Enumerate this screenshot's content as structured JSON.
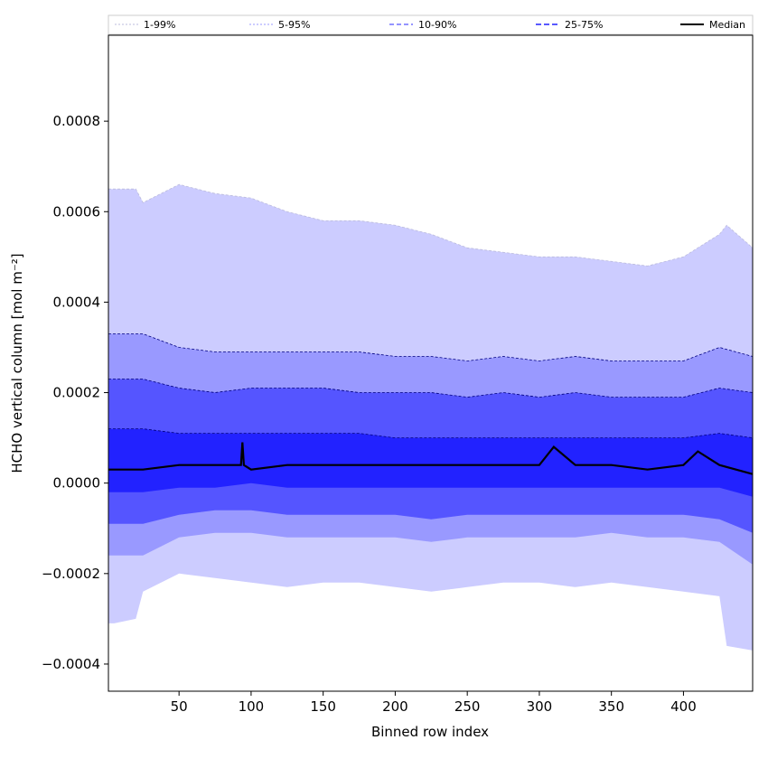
{
  "chart_data": {
    "type": "area",
    "xlabel": "Binned row index",
    "ylabel": "HCHO vertical column [mol m⁻²]",
    "xlim": [
      1,
      448
    ],
    "ylim": [
      -0.00046,
      0.00099
    ],
    "x_ticks": [
      50,
      100,
      150,
      200,
      250,
      300,
      350,
      400
    ],
    "y_ticks": [
      -0.0004,
      -0.0002,
      0.0,
      0.0002,
      0.0004,
      0.0006,
      0.0008
    ],
    "y_tick_labels": [
      "−0.0004",
      "−0.0002",
      "0.0000",
      "0.0002",
      "0.0004",
      "0.0006",
      "0.0008"
    ],
    "legend_placement": "top",
    "legend": [
      "1-99%",
      "5-95%",
      "10-90%",
      "25-75%",
      "Median"
    ],
    "bands": [
      {
        "name": "1-99%",
        "color": "#ccccff",
        "line_color": "#bbbbdd",
        "x": [
          1,
          5,
          20,
          25,
          50,
          75,
          100,
          125,
          150,
          175,
          200,
          225,
          250,
          275,
          300,
          325,
          350,
          375,
          400,
          425,
          430,
          448
        ],
        "lower": [
          -0.00031,
          -0.00031,
          -0.0003,
          -0.00024,
          -0.0002,
          -0.00021,
          -0.00022,
          -0.00023,
          -0.00022,
          -0.00022,
          -0.00023,
          -0.00024,
          -0.00023,
          -0.00022,
          -0.00022,
          -0.00023,
          -0.00022,
          -0.00023,
          -0.00024,
          -0.00025,
          -0.00036,
          -0.00037
        ],
        "upper": [
          0.00065,
          0.00065,
          0.00065,
          0.00062,
          0.00066,
          0.00064,
          0.00063,
          0.0006,
          0.00058,
          0.00058,
          0.00057,
          0.00055,
          0.00052,
          0.00051,
          0.0005,
          0.0005,
          0.00049,
          0.00048,
          0.0005,
          0.00055,
          0.00057,
          0.00052
        ]
      },
      {
        "name": "5-95%",
        "color": "#9999ff",
        "line_color": "#000080",
        "x": [
          1,
          25,
          50,
          75,
          100,
          125,
          150,
          175,
          200,
          225,
          250,
          275,
          300,
          325,
          350,
          375,
          400,
          425,
          448
        ],
        "lower": [
          -0.00016,
          -0.00016,
          -0.00012,
          -0.00011,
          -0.00011,
          -0.00012,
          -0.00012,
          -0.00012,
          -0.00012,
          -0.00013,
          -0.00012,
          -0.00012,
          -0.00012,
          -0.00012,
          -0.00011,
          -0.00012,
          -0.00012,
          -0.00013,
          -0.00018
        ],
        "upper": [
          0.00033,
          0.00033,
          0.0003,
          0.00029,
          0.00029,
          0.00029,
          0.00029,
          0.00029,
          0.00028,
          0.00028,
          0.00027,
          0.00028,
          0.00027,
          0.00028,
          0.00027,
          0.00027,
          0.00027,
          0.0003,
          0.00028
        ]
      },
      {
        "name": "10-90%",
        "color": "#5555ff",
        "line_color": "#000080",
        "x": [
          1,
          25,
          50,
          75,
          100,
          125,
          150,
          175,
          200,
          225,
          250,
          275,
          300,
          325,
          350,
          375,
          400,
          425,
          448
        ],
        "lower": [
          -9e-05,
          -9e-05,
          -7e-05,
          -6e-05,
          -6e-05,
          -7e-05,
          -7e-05,
          -7e-05,
          -7e-05,
          -8e-05,
          -7e-05,
          -7e-05,
          -7e-05,
          -7e-05,
          -7e-05,
          -7e-05,
          -7e-05,
          -8e-05,
          -0.00011
        ],
        "upper": [
          0.00023,
          0.00023,
          0.00021,
          0.0002,
          0.00021,
          0.00021,
          0.00021,
          0.0002,
          0.0002,
          0.0002,
          0.00019,
          0.0002,
          0.00019,
          0.0002,
          0.00019,
          0.00019,
          0.00019,
          0.00021,
          0.0002
        ]
      },
      {
        "name": "25-75%",
        "color": "#2222ff",
        "line_color": "#000080",
        "x": [
          1,
          25,
          50,
          75,
          100,
          125,
          150,
          175,
          200,
          225,
          250,
          275,
          300,
          325,
          350,
          375,
          400,
          425,
          448
        ],
        "lower": [
          -2e-05,
          -2e-05,
          -1e-05,
          -1e-05,
          0.0,
          -1e-05,
          -1e-05,
          -1e-05,
          -1e-05,
          -1e-05,
          -1e-05,
          -1e-05,
          -1e-05,
          -1e-05,
          -1e-05,
          -1e-05,
          -1e-05,
          -1e-05,
          -3e-05
        ],
        "upper": [
          0.00012,
          0.00012,
          0.00011,
          0.00011,
          0.00011,
          0.00011,
          0.00011,
          0.00011,
          0.0001,
          0.0001,
          0.0001,
          0.0001,
          0.0001,
          0.0001,
          0.0001,
          0.0001,
          0.0001,
          0.00011,
          0.0001
        ]
      }
    ],
    "median": {
      "name": "Median",
      "color": "#000000",
      "x": [
        1,
        25,
        50,
        75,
        93,
        94,
        95,
        100,
        125,
        150,
        175,
        200,
        225,
        250,
        275,
        300,
        310,
        325,
        350,
        375,
        400,
        410,
        425,
        448
      ],
      "y": [
        3e-05,
        3e-05,
        4e-05,
        4e-05,
        4e-05,
        9e-05,
        4e-05,
        3e-05,
        4e-05,
        4e-05,
        4e-05,
        4e-05,
        4e-05,
        4e-05,
        4e-05,
        4e-05,
        8e-05,
        4e-05,
        4e-05,
        3e-05,
        4e-05,
        7e-05,
        4e-05,
        2e-05
      ]
    }
  }
}
